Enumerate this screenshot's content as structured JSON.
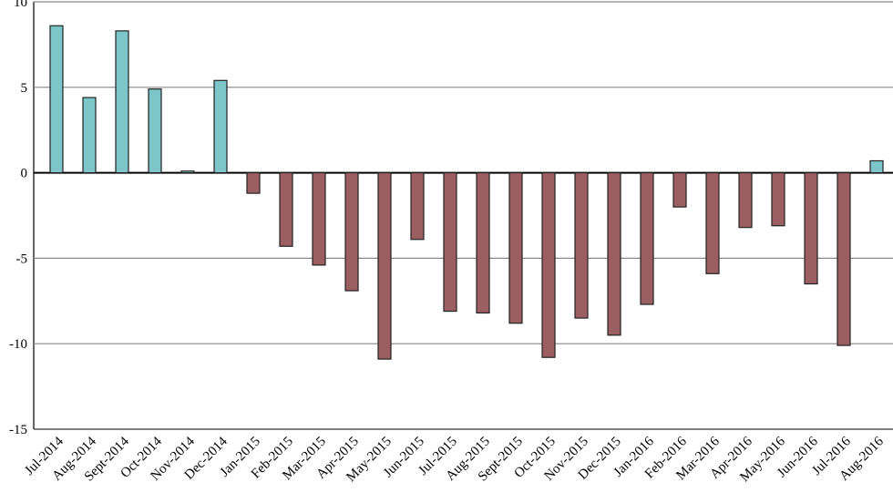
{
  "chart_data": {
    "type": "bar",
    "categories": [
      "Jul-2014",
      "Aug-2014",
      "Sept-2014",
      "Oct-2014",
      "Nov-2014",
      "Dec-2014",
      "Jan-2015",
      "Feb-2015",
      "Mar-2015",
      "Apr-2015",
      "May-2015",
      "Jun-2015",
      "Jul-2015",
      "Aug-2015",
      "Sept-2015",
      "Oct-2015",
      "Nov-2015",
      "Dec-2015",
      "Jan-2016",
      "Feb-2016",
      "Mar-2016",
      "Apr-2016",
      "May-2016",
      "Jun-2016",
      "Jul-2016",
      "Aug-2016"
    ],
    "values": [
      8.6,
      4.4,
      8.3,
      4.9,
      0.1,
      5.4,
      -1.2,
      -4.3,
      -5.4,
      -6.9,
      -10.9,
      -3.9,
      -8.1,
      -8.2,
      -8.8,
      -10.8,
      -8.5,
      -9.5,
      -7.7,
      -2.0,
      -5.9,
      -3.2,
      -3.1,
      -6.5,
      -10.1,
      0.7
    ],
    "color_positive": "#7cc5c8",
    "color_negative": "#9b5f62",
    "ylim": [
      -15,
      10
    ],
    "yticks": [
      -15,
      -10,
      -5,
      0,
      5,
      10
    ],
    "grid": true
  }
}
